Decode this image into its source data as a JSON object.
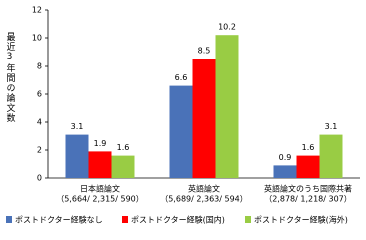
{
  "chart_data": {
    "type": "bar",
    "y_label": "最近3年間の論文数",
    "categories": [
      "日本語論文",
      "英語論文",
      "英語論文のうち国際共著"
    ],
    "category_notes": [
      "（5,664/ 2,315/ 590）",
      "（5,689/ 2,363/ 594）",
      "（2,878/ 1,218/ 307）"
    ],
    "series": [
      {
        "name": "ポストドクター経験なし",
        "color": "#4a72b8",
        "values": [
          3.1,
          6.6,
          0.9
        ]
      },
      {
        "name": "ポストドクター経験(国内)",
        "color": "#ff0000",
        "values": [
          1.9,
          8.5,
          1.6
        ]
      },
      {
        "name": "ポストドクター経験(海外)",
        "color": "#99cc44",
        "values": [
          1.6,
          10.2,
          3.1
        ]
      }
    ],
    "ylim": [
      0,
      12
    ],
    "yticks": [
      0,
      2,
      4,
      6,
      8,
      10,
      12
    ],
    "grid": false
  }
}
